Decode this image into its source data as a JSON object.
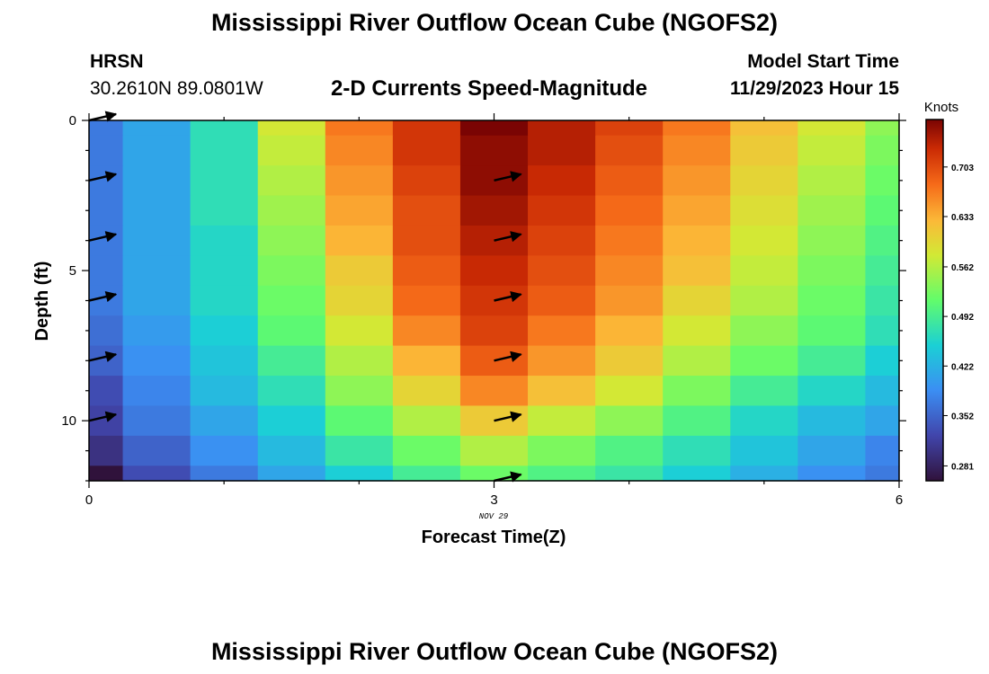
{
  "header": {
    "title": "Mississippi River Outflow Ocean Cube (NGOFS2)",
    "station_name": "HRSN",
    "station_coords": "30.2610N  89.0801W",
    "subtitle": "2-D Currents Speed-Magnitude",
    "model_start_label": "Model Start Time",
    "model_start_value": "11/29/2023 Hour 15"
  },
  "footer": {
    "title": "Mississippi River Outflow Ocean Cube (NGOFS2)"
  },
  "chart_data": {
    "type": "heatmap",
    "xlabel": "Forecast Time(Z)",
    "ylabel": "Depth (ft)",
    "xlim": [
      0,
      6
    ],
    "ylim": [
      0,
      12
    ],
    "x_ticks": [
      "0",
      "3",
      "6"
    ],
    "y_ticks": [
      "0",
      "5",
      "10"
    ],
    "date_label": "NOV 29",
    "colorbar": {
      "label": "Knots",
      "ticks": [
        "0.703",
        "0.633",
        "0.562",
        "0.492",
        "0.422",
        "0.352",
        "0.281"
      ],
      "min": 0.26,
      "max": 0.77
    },
    "column_centers_hr": [
      0,
      0.5,
      1.0,
      1.5,
      2.0,
      2.5,
      3.0,
      3.5,
      4.0,
      4.5,
      5.0,
      5.5,
      6.0
    ],
    "row_depths_ft": [
      0,
      1,
      2,
      3,
      4,
      5,
      6,
      7,
      8,
      9,
      10,
      11,
      12
    ],
    "speed_knots": [
      [
        0.37,
        0.41,
        0.47,
        0.58,
        0.67,
        0.72,
        0.77,
        0.74,
        0.71,
        0.67,
        0.62,
        0.58,
        0.54
      ],
      [
        0.37,
        0.41,
        0.47,
        0.57,
        0.66,
        0.72,
        0.76,
        0.74,
        0.7,
        0.66,
        0.61,
        0.57,
        0.53
      ],
      [
        0.37,
        0.41,
        0.47,
        0.56,
        0.65,
        0.71,
        0.76,
        0.73,
        0.69,
        0.65,
        0.6,
        0.56,
        0.52
      ],
      [
        0.37,
        0.41,
        0.47,
        0.55,
        0.64,
        0.7,
        0.75,
        0.72,
        0.68,
        0.64,
        0.59,
        0.55,
        0.51
      ],
      [
        0.37,
        0.41,
        0.46,
        0.54,
        0.63,
        0.7,
        0.74,
        0.71,
        0.67,
        0.63,
        0.58,
        0.54,
        0.5
      ],
      [
        0.37,
        0.41,
        0.46,
        0.53,
        0.61,
        0.69,
        0.73,
        0.7,
        0.66,
        0.62,
        0.57,
        0.53,
        0.49
      ],
      [
        0.37,
        0.41,
        0.46,
        0.52,
        0.6,
        0.68,
        0.72,
        0.69,
        0.65,
        0.6,
        0.56,
        0.52,
        0.48
      ],
      [
        0.36,
        0.4,
        0.45,
        0.51,
        0.58,
        0.66,
        0.71,
        0.67,
        0.63,
        0.58,
        0.54,
        0.51,
        0.47
      ],
      [
        0.35,
        0.39,
        0.44,
        0.49,
        0.56,
        0.63,
        0.69,
        0.65,
        0.61,
        0.56,
        0.52,
        0.49,
        0.45
      ],
      [
        0.33,
        0.38,
        0.43,
        0.47,
        0.54,
        0.6,
        0.66,
        0.62,
        0.58,
        0.53,
        0.49,
        0.46,
        0.43
      ],
      [
        0.32,
        0.37,
        0.41,
        0.45,
        0.51,
        0.56,
        0.61,
        0.57,
        0.54,
        0.5,
        0.46,
        0.43,
        0.41
      ],
      [
        0.3,
        0.35,
        0.39,
        0.43,
        0.48,
        0.52,
        0.56,
        0.53,
        0.5,
        0.47,
        0.44,
        0.41,
        0.38
      ],
      [
        0.26,
        0.33,
        0.37,
        0.41,
        0.45,
        0.49,
        0.52,
        0.5,
        0.48,
        0.45,
        0.42,
        0.39,
        0.37
      ]
    ],
    "current_vectors": [
      {
        "time_hr": 0,
        "depth_ft": 0
      },
      {
        "time_hr": 0,
        "depth_ft": 2
      },
      {
        "time_hr": 0,
        "depth_ft": 4
      },
      {
        "time_hr": 0,
        "depth_ft": 6
      },
      {
        "time_hr": 0,
        "depth_ft": 8
      },
      {
        "time_hr": 0,
        "depth_ft": 10
      },
      {
        "time_hr": 3,
        "depth_ft": 2
      },
      {
        "time_hr": 3,
        "depth_ft": 4
      },
      {
        "time_hr": 3,
        "depth_ft": 6
      },
      {
        "time_hr": 3,
        "depth_ft": 8
      },
      {
        "time_hr": 3,
        "depth_ft": 10
      },
      {
        "time_hr": 3,
        "depth_ft": 12
      }
    ]
  }
}
